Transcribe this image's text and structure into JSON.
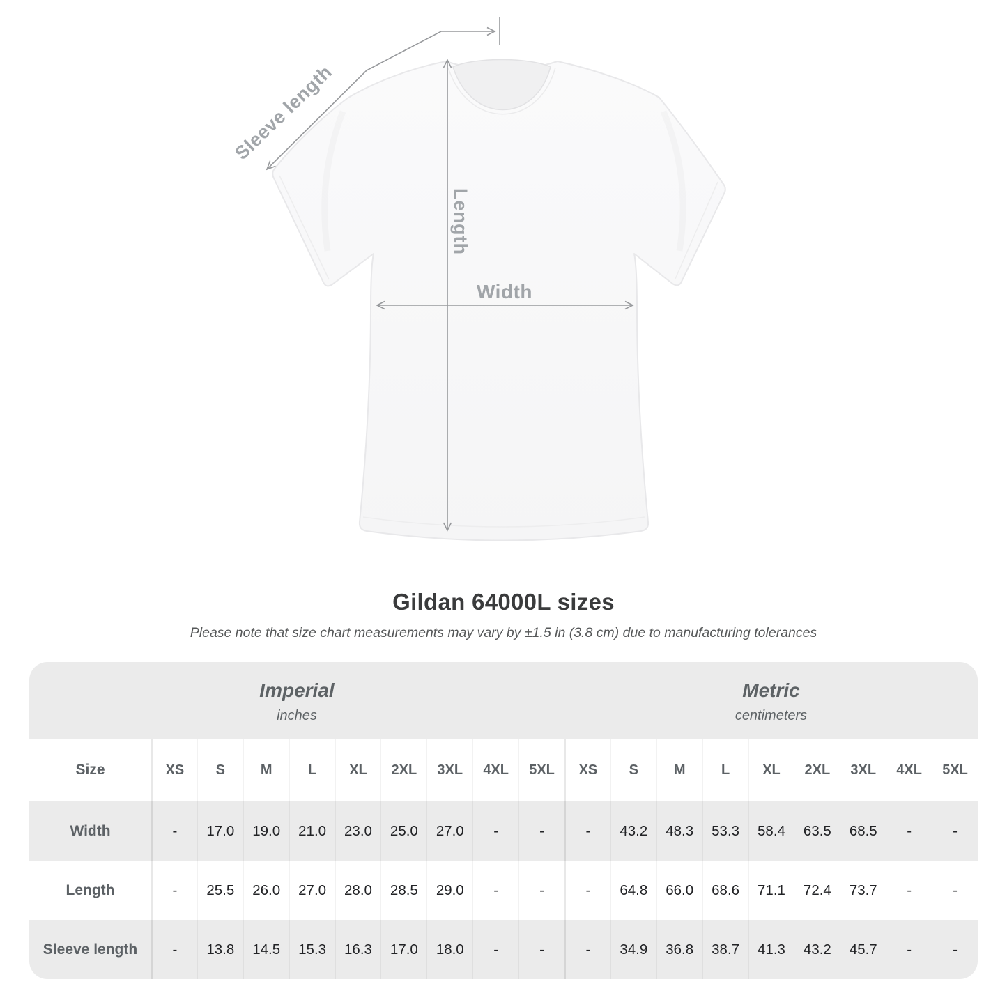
{
  "page": {
    "title": "Gildan 64000L sizes",
    "note": "Please note that size chart measurements may vary by ±1.5 in (3.8 cm) due to manufacturing tolerances"
  },
  "diagram": {
    "sleeve_length_label": "Sleeve length",
    "length_label": "Length",
    "width_label": "Width",
    "line_color": "#97999c",
    "label_color": "#a1a5a9",
    "shirt_fill": "#f8f8f9",
    "shirt_outline": "#e8e8ea"
  },
  "table": {
    "size_label": "Size",
    "unit_groups": [
      {
        "name": "Imperial",
        "unit": "inches"
      },
      {
        "name": "Metric",
        "unit": "centimeters"
      }
    ],
    "sizes": [
      "XS",
      "S",
      "M",
      "L",
      "XL",
      "2XL",
      "3XL",
      "4XL",
      "5XL"
    ],
    "rows": [
      {
        "label": "Width",
        "imperial": [
          "-",
          "17.0",
          "19.0",
          "21.0",
          "23.0",
          "25.0",
          "27.0",
          "-",
          "-"
        ],
        "metric": [
          "-",
          "43.2",
          "48.3",
          "53.3",
          "58.4",
          "63.5",
          "68.5",
          "-",
          "-"
        ]
      },
      {
        "label": "Length",
        "imperial": [
          "-",
          "25.5",
          "26.0",
          "27.0",
          "28.0",
          "28.5",
          "29.0",
          "-",
          "-"
        ],
        "metric": [
          "-",
          "64.8",
          "66.0",
          "68.6",
          "71.1",
          "72.4",
          "73.7",
          "-",
          "-"
        ]
      },
      {
        "label": "Sleeve length",
        "imperial": [
          "-",
          "13.8",
          "14.5",
          "15.3",
          "16.3",
          "17.0",
          "18.0",
          "-",
          "-"
        ],
        "metric": [
          "-",
          "34.9",
          "36.8",
          "38.7",
          "41.3",
          "43.2",
          "45.7",
          "-",
          "-"
        ]
      }
    ]
  }
}
